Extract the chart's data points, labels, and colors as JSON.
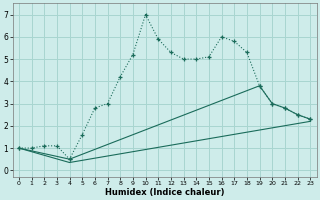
{
  "xlabel": "Humidex (Indice chaleur)",
  "bg_color": "#ceecea",
  "grid_color": "#a8d5d0",
  "line_color": "#1a6b5a",
  "xlim_min": -0.5,
  "xlim_max": 23.5,
  "ylim_min": -0.3,
  "ylim_max": 7.5,
  "xticks": [
    0,
    1,
    2,
    3,
    4,
    5,
    6,
    7,
    8,
    9,
    10,
    11,
    12,
    13,
    14,
    15,
    16,
    17,
    18,
    19,
    20,
    21,
    22,
    23
  ],
  "yticks": [
    0,
    1,
    2,
    3,
    4,
    5,
    6,
    7
  ],
  "curve1_x": [
    0,
    1,
    2,
    3,
    4,
    5,
    6,
    7,
    8,
    9,
    10,
    11,
    12,
    13,
    14,
    15,
    16,
    17,
    18,
    19,
    20,
    21,
    22,
    23
  ],
  "curve1_y": [
    1.0,
    1.0,
    1.1,
    1.1,
    0.5,
    1.6,
    2.8,
    3.0,
    4.2,
    5.2,
    7.0,
    5.9,
    5.3,
    5.0,
    5.0,
    5.1,
    6.0,
    5.8,
    5.3,
    3.8,
    3.0,
    2.8,
    2.5,
    2.3
  ],
  "curve2_x": [
    0,
    4,
    19,
    20,
    21,
    22,
    23
  ],
  "curve2_y": [
    1.0,
    0.5,
    3.8,
    3.0,
    2.8,
    2.5,
    2.3
  ],
  "curve3_x": [
    0,
    4,
    23
  ],
  "curve3_y": [
    1.0,
    0.35,
    2.2
  ]
}
